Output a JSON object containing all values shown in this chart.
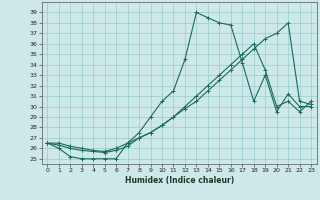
{
  "xlabel": "Humidex (Indice chaleur)",
  "bg_color": "#cce8e8",
  "grid_color": "#99cccc",
  "line_color": "#1a6a5a",
  "xlim": [
    -0.5,
    23.5
  ],
  "ylim": [
    24.5,
    40.0
  ],
  "xtick_labels": [
    "0",
    "1",
    "2",
    "3",
    "4",
    "5",
    "6",
    "7",
    "8",
    "9",
    "10",
    "11",
    "12",
    "13",
    "14",
    "15",
    "16",
    "17",
    "18",
    "19",
    "20",
    "21",
    "22",
    "23"
  ],
  "ytick_labels": [
    "25",
    "26",
    "27",
    "28",
    "29",
    "30",
    "31",
    "32",
    "33",
    "34",
    "35",
    "36",
    "37",
    "38",
    "39"
  ],
  "ytick_vals": [
    25,
    26,
    27,
    28,
    29,
    30,
    31,
    32,
    33,
    34,
    35,
    36,
    37,
    38,
    39
  ],
  "series1": [
    26.5,
    26.0,
    25.2,
    25.0,
    25.0,
    25.0,
    25.0,
    26.5,
    27.5,
    29.0,
    30.5,
    31.5,
    34.5,
    39.0,
    38.5,
    38.0,
    37.8,
    34.2,
    30.5,
    33.0,
    29.5,
    31.2,
    30.0,
    30.0
  ],
  "series2": [
    26.5,
    26.3,
    26.0,
    25.8,
    25.7,
    25.6,
    25.8,
    26.2,
    27.0,
    27.5,
    28.2,
    29.0,
    30.0,
    31.0,
    32.0,
    33.0,
    34.0,
    35.0,
    36.0,
    33.5,
    30.0,
    30.5,
    29.5,
    30.5
  ],
  "series3": [
    26.5,
    26.5,
    26.2,
    26.0,
    25.8,
    25.7,
    26.0,
    26.5,
    27.0,
    27.5,
    28.2,
    29.0,
    29.8,
    30.5,
    31.5,
    32.5,
    33.5,
    34.5,
    35.5,
    36.5,
    37.0,
    38.0,
    30.5,
    30.2
  ]
}
